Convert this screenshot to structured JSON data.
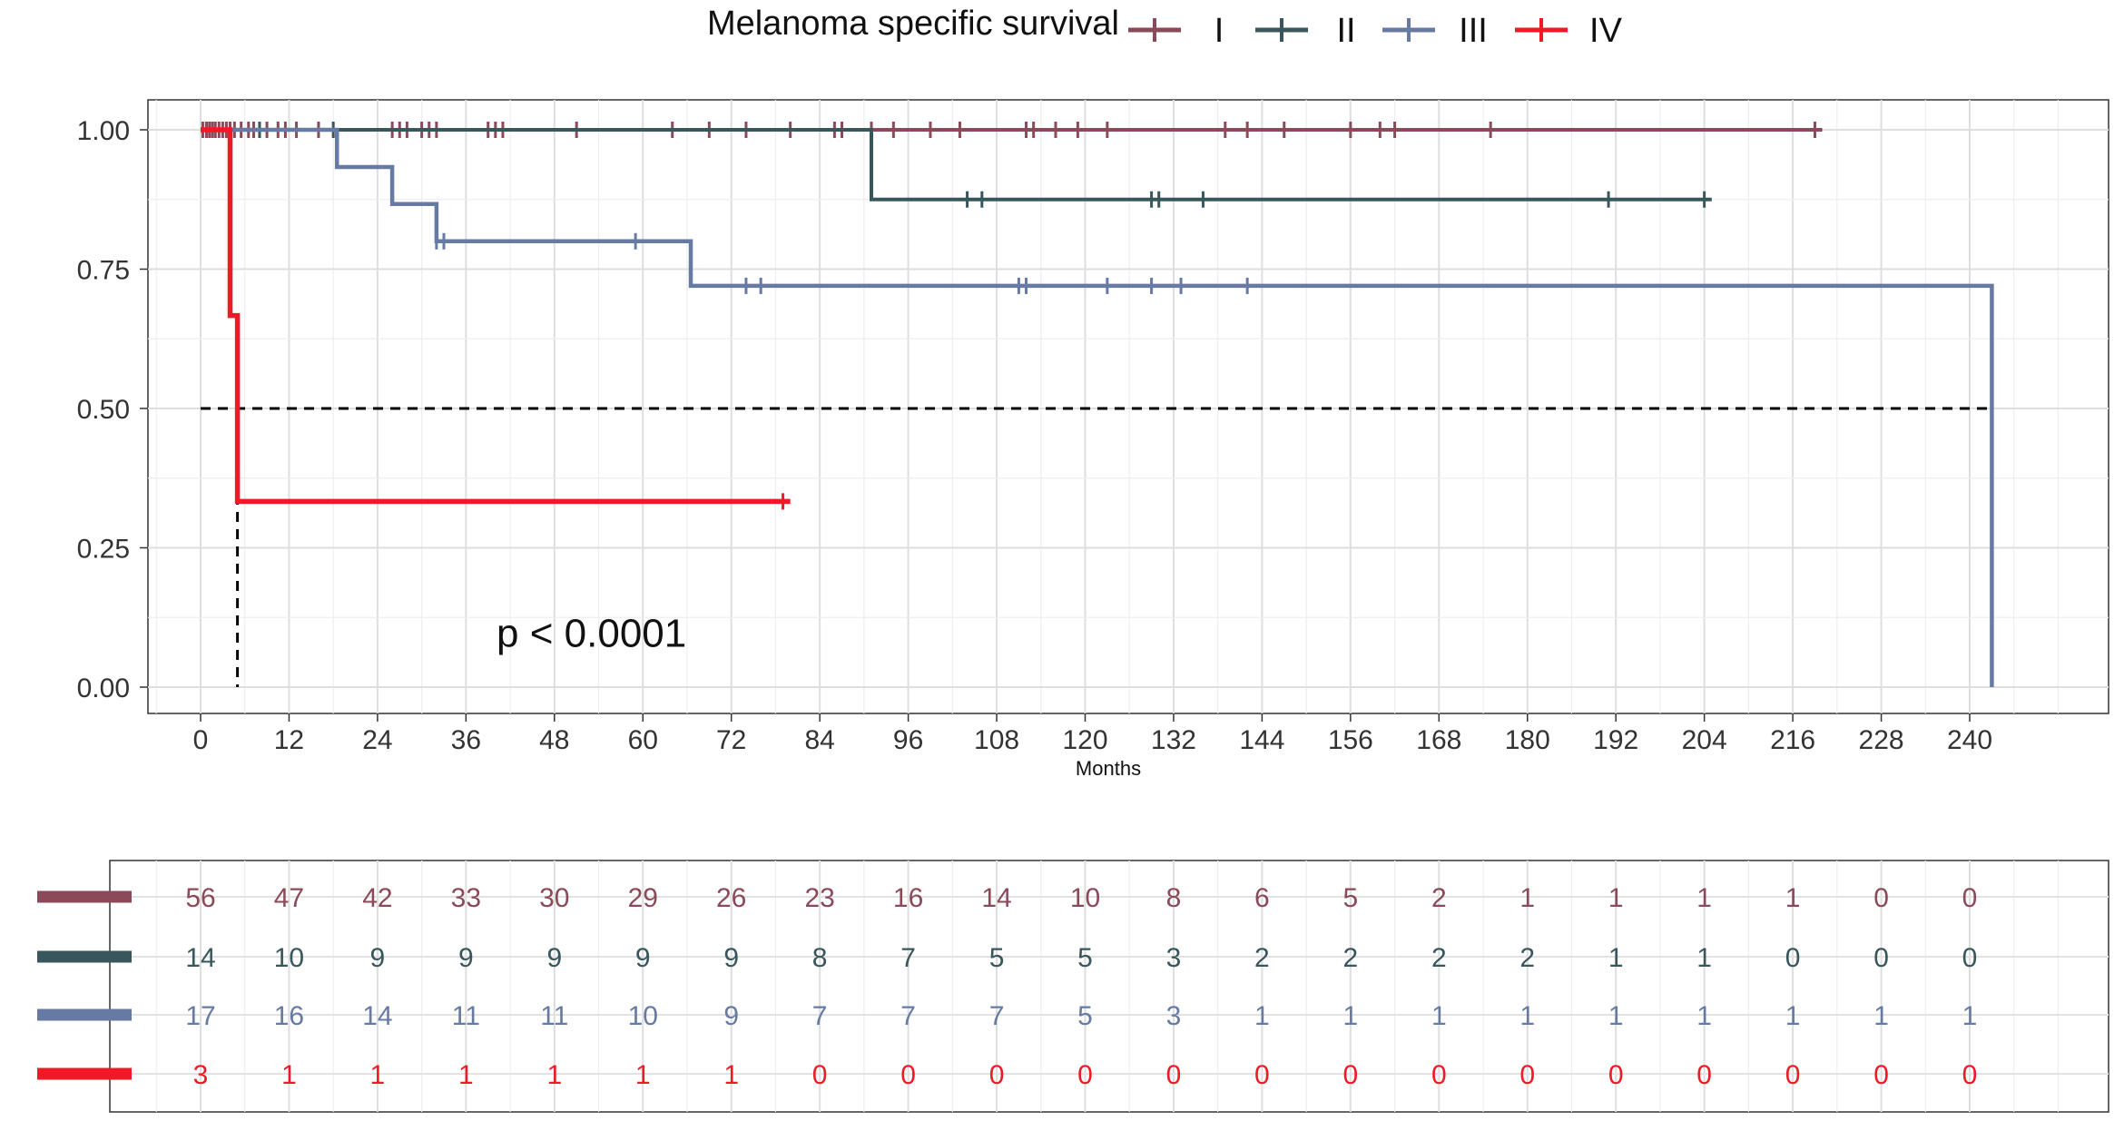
{
  "chart_data": {
    "type": "line",
    "subtype": "kaplan-meier",
    "legend": {
      "title": "Melanoma specific survival",
      "placement": "top-center"
    },
    "xlabel": "Months",
    "ylabel": "",
    "xlim": [
      -3,
      255
    ],
    "ylim": [
      -0.05,
      1.05
    ],
    "x_ticks": [
      0,
      12,
      24,
      36,
      48,
      60,
      72,
      84,
      96,
      108,
      120,
      132,
      144,
      156,
      168,
      180,
      192,
      204,
      216,
      228,
      240
    ],
    "y_ticks": [
      0.0,
      0.25,
      0.5,
      0.75,
      1.0
    ],
    "y_tick_labels": [
      "0.00",
      "0.25",
      "0.50",
      "0.75",
      "1.00"
    ],
    "grid": true,
    "annotation": {
      "text": "p < 0.0001",
      "x": 50,
      "y": 0.1
    },
    "series": [
      {
        "name": "I",
        "color": "#8b4a59",
        "steps": [
          [
            0,
            1.0
          ],
          [
            220,
            1.0
          ]
        ],
        "censor": [
          0.3,
          0.8,
          1.2,
          1.6,
          2,
          2.5,
          3,
          3.5,
          4,
          4.6,
          5.5,
          6.5,
          7.2,
          8,
          9,
          10.5,
          11.5,
          13,
          16,
          26,
          27,
          28,
          30,
          31,
          32,
          39,
          40,
          41,
          51,
          64,
          69,
          74,
          80,
          86,
          87,
          91,
          94,
          99,
          103,
          112,
          113,
          116,
          119,
          123,
          139,
          142,
          147,
          156,
          160,
          162,
          175,
          219
        ]
      },
      {
        "name": "II",
        "color": "#38575c",
        "steps": [
          [
            0,
            1.0
          ],
          [
            91,
            1.0
          ],
          [
            91,
            0.875
          ],
          [
            205,
            0.875
          ]
        ],
        "censor": [
          8,
          18,
          104,
          106,
          129,
          130,
          136,
          191,
          204
        ]
      },
      {
        "name": "III",
        "color": "#677aa4",
        "steps": [
          [
            0,
            1.0
          ],
          [
            18.5,
            1.0
          ],
          [
            18.5,
            0.9333
          ],
          [
            26,
            0.9333
          ],
          [
            26,
            0.8667
          ],
          [
            32,
            0.8667
          ],
          [
            32,
            0.8
          ],
          [
            66.5,
            0.8
          ],
          [
            66.5,
            0.72
          ],
          [
            243,
            0.72
          ],
          [
            243,
            0.0
          ]
        ],
        "censor": [
          32,
          33,
          59,
          74,
          76,
          111,
          112,
          123,
          129,
          133,
          142
        ]
      },
      {
        "name": "IV",
        "color": "#ef1a26",
        "steps": [
          [
            0,
            1.0
          ],
          [
            4,
            1.0
          ],
          [
            4,
            0.6667
          ],
          [
            5,
            0.6667
          ],
          [
            5,
            0.3333
          ],
          [
            80,
            0.3333
          ]
        ],
        "censor": [
          79
        ]
      }
    ],
    "median_lines": [
      {
        "x": 5,
        "y": 0.5
      },
      {
        "x": 243,
        "y": 0.5
      }
    ],
    "risk_table": {
      "time_points": [
        0,
        12,
        24,
        36,
        48,
        60,
        72,
        84,
        96,
        108,
        120,
        132,
        144,
        156,
        168,
        180,
        192,
        204,
        216,
        228,
        240
      ],
      "rows": [
        {
          "name": "I",
          "values": [
            "56",
            "47",
            "42",
            "33",
            "30",
            "29",
            "26",
            "23",
            "16",
            "14",
            "10",
            "8",
            "6",
            "5",
            "2",
            "1",
            "1",
            "1",
            "1",
            "0",
            "0"
          ]
        },
        {
          "name": "II",
          "values": [
            "14",
            "10",
            "9",
            "9",
            "9",
            "9",
            "9",
            "8",
            "7",
            "5",
            "5",
            "3",
            "2",
            "2",
            "2",
            "2",
            "1",
            "1",
            "0",
            "0",
            "0"
          ]
        },
        {
          "name": "III",
          "values": [
            "17",
            "16",
            "14",
            "11",
            "11",
            "10",
            "9",
            "7",
            "7",
            "7",
            "5",
            "3",
            "1",
            "1",
            "1",
            "1",
            "1",
            "1",
            "1",
            "1",
            "1"
          ]
        },
        {
          "name": "IV",
          "values": [
            "3",
            "1",
            "1",
            "1",
            "1",
            "1",
            "1",
            "0",
            "0",
            "0",
            "0",
            "0",
            "0",
            "0",
            "0",
            "0",
            "0",
            "0",
            "0",
            "0",
            "0"
          ]
        }
      ]
    }
  }
}
